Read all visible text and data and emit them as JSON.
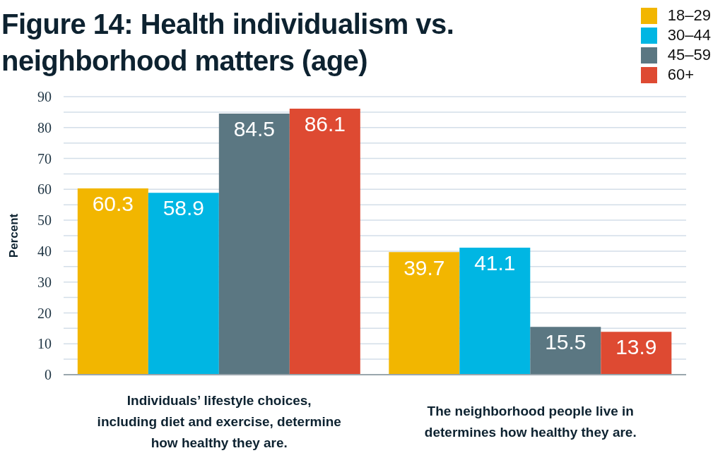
{
  "chart_data": {
    "type": "bar",
    "title": "Figure 14: Health individualism vs. neighborhood matters (age)",
    "ylabel": "Percent",
    "categories": [
      "Individuals’ lifestyle choices, including diet and exercise, determine how healthy they are.",
      "The neighborhood people live in determines how healthy they are."
    ],
    "series": [
      {
        "name": "18–29",
        "color": "#f2b600",
        "values": [
          60.3,
          39.7
        ]
      },
      {
        "name": "30–44",
        "color": "#00b6e3",
        "values": [
          58.9,
          41.1
        ]
      },
      {
        "name": "45–59",
        "color": "#5b7782",
        "values": [
          84.5,
          15.5
        ]
      },
      {
        "name": "60+",
        "color": "#de4a32",
        "values": [
          86.1,
          13.9
        ]
      }
    ],
    "ylim": [
      0,
      90
    ],
    "yticks": [
      0,
      {
        "value": 5,
        "label": null
      },
      10,
      {
        "value": 15,
        "label": null
      },
      20,
      {
        "value": 25,
        "label": null
      },
      30,
      {
        "value": 35,
        "label": null
      },
      40,
      {
        "value": 45,
        "label": null
      },
      50,
      {
        "value": 55,
        "label": null
      },
      60,
      {
        "value": 65,
        "label": null
      },
      70,
      {
        "value": 75,
        "label": null
      },
      80,
      {
        "value": 85,
        "label": null
      },
      90
    ],
    "grid": "y",
    "legend": "top right",
    "data_labels": true
  }
}
